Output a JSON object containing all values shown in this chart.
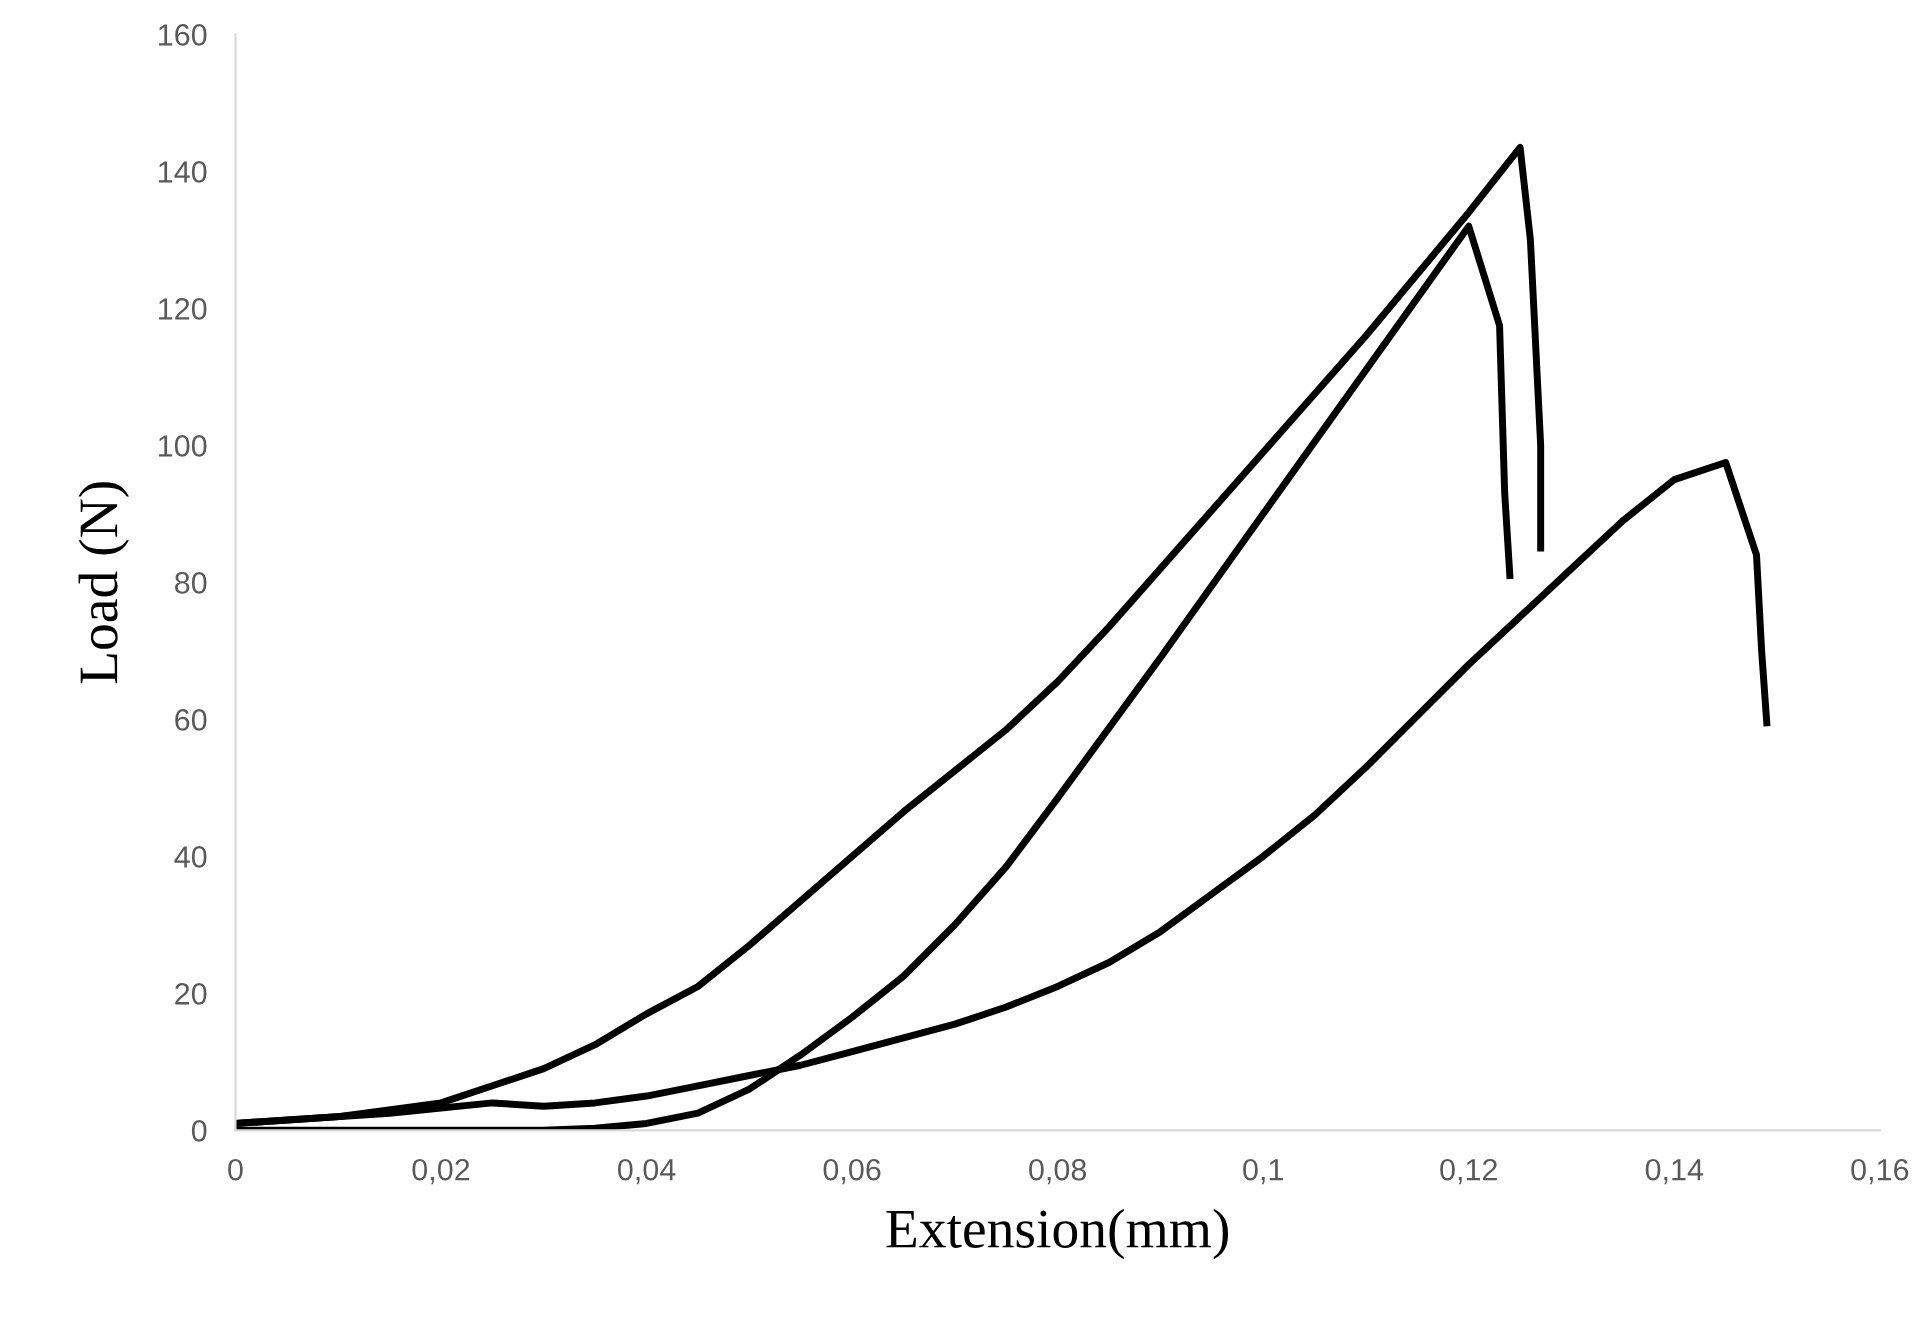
{
  "chart_data": {
    "type": "line",
    "xlabel": "Extension(mm)",
    "ylabel": "Load (N)",
    "series": [
      {
        "color": "#000000",
        "x": [
          0,
          0.01,
          0.02,
          0.025,
          0.03,
          0.035,
          0.04,
          0.045,
          0.05,
          0.055,
          0.06,
          0.065,
          0.07,
          0.075,
          0.08,
          0.085,
          0.09,
          0.1,
          0.11,
          0.12,
          0.125,
          0.126,
          0.127,
          0.127
        ],
        "values": [
          1,
          2,
          4,
          6.5,
          9,
          12.5,
          17,
          21,
          27,
          33.5,
          40,
          46.5,
          52.5,
          58.5,
          65.5,
          73.5,
          82,
          99,
          116,
          134,
          143.5,
          130,
          100,
          85
        ]
      },
      {
        "color": "#000000",
        "x": [
          0,
          0.01,
          0.02,
          0.03,
          0.035,
          0.04,
          0.045,
          0.05,
          0.055,
          0.06,
          0.065,
          0.07,
          0.075,
          0.08,
          0.09,
          0.1,
          0.11,
          0.12,
          0.123,
          0.1235,
          0.124
        ],
        "values": [
          0,
          0,
          0,
          0,
          0.3,
          1,
          2.5,
          6,
          11,
          16.5,
          22.5,
          30,
          38.5,
          48.5,
          69,
          90,
          111,
          132,
          117.5,
          93,
          81
        ]
      },
      {
        "color": "#000000",
        "x": [
          0,
          0.015,
          0.025,
          0.03,
          0.035,
          0.04,
          0.045,
          0.05,
          0.055,
          0.06,
          0.065,
          0.07,
          0.075,
          0.08,
          0.085,
          0.09,
          0.095,
          0.1,
          0.105,
          0.11,
          0.115,
          0.12,
          0.125,
          0.13,
          0.135,
          0.14,
          0.145,
          0.148,
          0.1485,
          0.149
        ],
        "values": [
          1,
          2.5,
          4,
          3.5,
          4,
          5,
          6.5,
          8,
          9.5,
          11.5,
          13.5,
          15.5,
          18,
          21,
          24.5,
          29,
          34.5,
          40,
          46,
          53,
          60.5,
          68,
          75,
          82,
          89,
          95,
          97.5,
          84,
          70,
          59.5
        ]
      }
    ],
    "xlim": [
      0,
      0.16
    ],
    "xticks": [
      0,
      {
        "value": 0.02,
        "label": "0,02"
      },
      {
        "value": 0.04,
        "label": "0,04"
      },
      {
        "value": 0.06,
        "label": "0,06"
      },
      {
        "value": 0.08,
        "label": "0,08"
      },
      {
        "value": 0.1,
        "label": "0,1"
      },
      {
        "value": 0.12,
        "label": "0,12"
      },
      {
        "value": 0.14,
        "label": "0,14"
      },
      {
        "value": 0.16,
        "label": "0,16"
      }
    ],
    "ylim": [
      0,
      160
    ],
    "yticks": [
      0,
      20,
      40,
      60,
      80,
      100,
      120,
      140,
      160
    ],
    "grid": false,
    "legend": false,
    "marker": "none",
    "line_style": "solid"
  }
}
